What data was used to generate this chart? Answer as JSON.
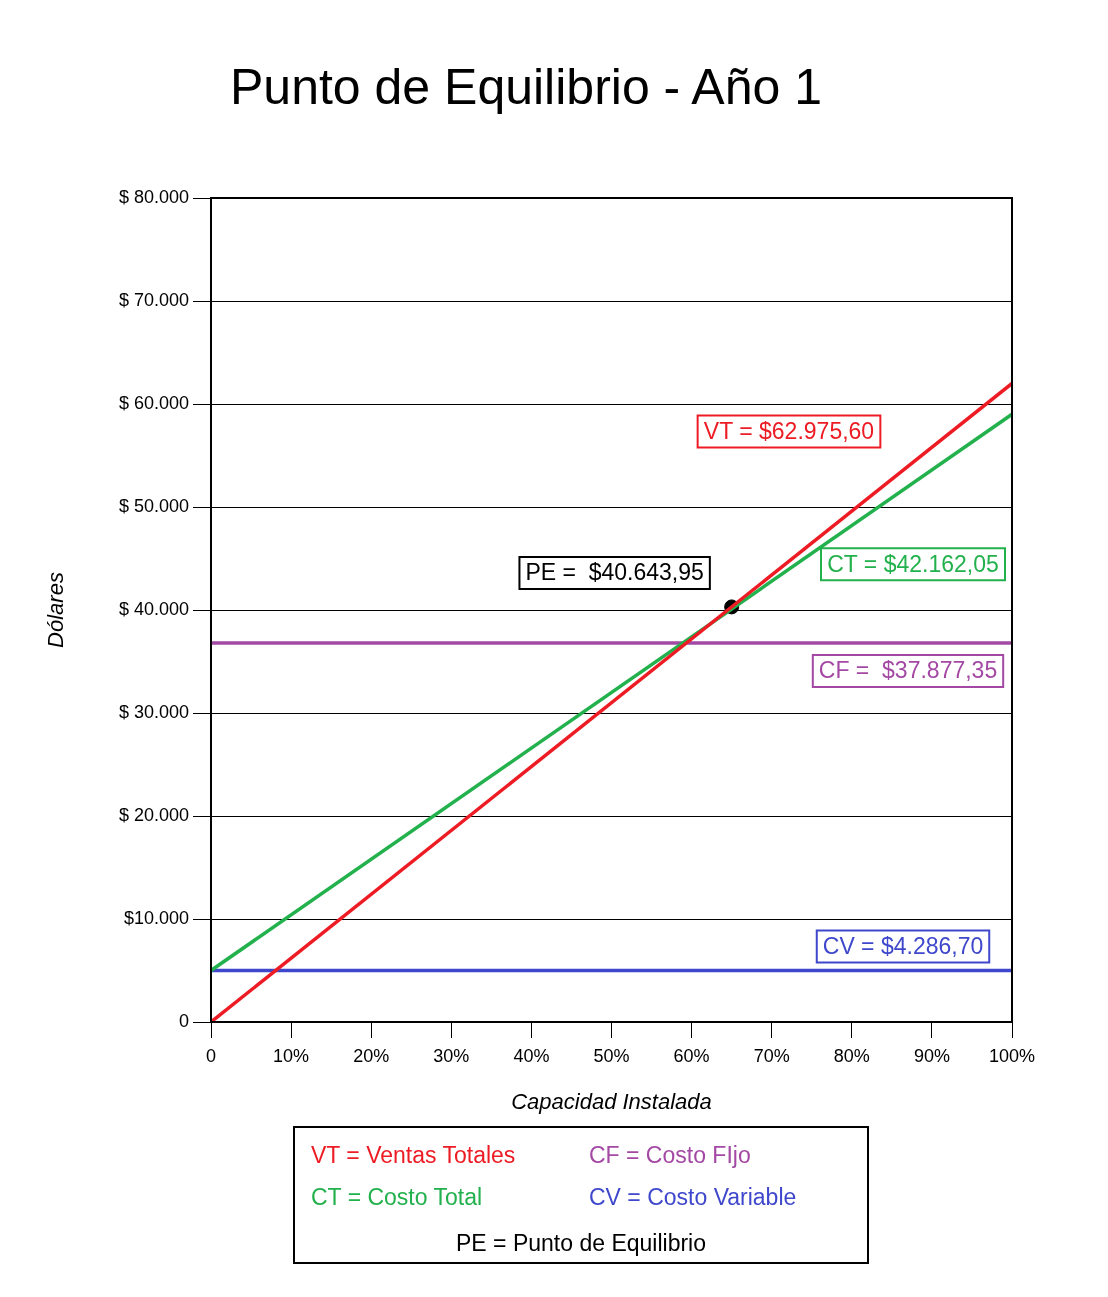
{
  "chart_data": {
    "type": "line",
    "title": "Punto de Equilibrio - Año 1",
    "xlabel": "Capacidad Instalada",
    "ylabel": "Dólares",
    "xlim": [
      0,
      100
    ],
    "xticks": [
      {
        "value": 0,
        "label": "0"
      },
      {
        "value": 10,
        "label": "10%"
      },
      {
        "value": 20,
        "label": "20%"
      },
      {
        "value": 30,
        "label": "30%"
      },
      {
        "value": 40,
        "label": "40%"
      },
      {
        "value": 50,
        "label": "50%"
      },
      {
        "value": 60,
        "label": "60%"
      },
      {
        "value": 70,
        "label": "70%"
      },
      {
        "value": 80,
        "label": "80%"
      },
      {
        "value": 90,
        "label": "90%"
      },
      {
        "value": 100,
        "label": "100%"
      }
    ],
    "ylim": [
      0,
      80000
    ],
    "yticks": [
      {
        "value": 0,
        "label": "0"
      },
      {
        "value": 10000,
        "label": "$10.000"
      },
      {
        "value": 20000,
        "label": "$ 20.000"
      },
      {
        "value": 30000,
        "label": "$ 30.000"
      },
      {
        "value": 40000,
        "label": "$ 40.000"
      },
      {
        "value": 50000,
        "label": "$ 50.000"
      },
      {
        "value": 60000,
        "label": "$ 60.000"
      },
      {
        "value": 70000,
        "label": "$ 70.000"
      },
      {
        "value": 80000,
        "label": "$ 80.000"
      }
    ],
    "grid": "y",
    "legend": "bottom",
    "marker": "none",
    "line_style": "solid",
    "series": [
      {
        "name": "VT = Ventas Totales",
        "color": "#ed1c24",
        "x": [
          0,
          100
        ],
        "values": [
          0,
          62000
        ]
      },
      {
        "name": "CT = Costo Total",
        "color": "#22b14c",
        "x": [
          0,
          100
        ],
        "values": [
          5000,
          59000
        ]
      },
      {
        "name": "CF = Costo FIjo",
        "color": "#a349a4",
        "x": [
          0,
          100
        ],
        "values": [
          36800,
          36800
        ]
      },
      {
        "name": "CV = Costo Variable",
        "color": "#3f48cc",
        "x": [
          0,
          100
        ],
        "values": [
          5000,
          5000
        ]
      },
      {
        "name": "PE = Punto de Equilibrio",
        "type": "scatter",
        "marker": "circle",
        "color": "#000000",
        "x": [
          65
        ],
        "values": [
          40300
        ]
      }
    ],
    "annotations": [
      "VT = $62.975,60",
      "CT = $42.162,05",
      "CF =  $37.877,35",
      "CV = $4.286,70",
      "PE =  $40.643,95"
    ]
  }
}
